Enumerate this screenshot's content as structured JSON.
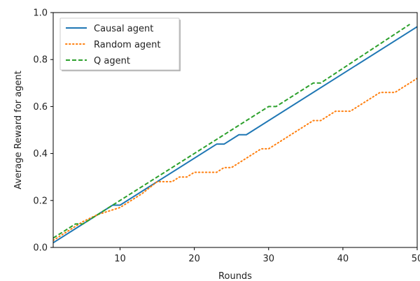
{
  "chart_data": {
    "type": "line",
    "title": "",
    "xlabel": "Rounds",
    "ylabel": "Average Reward for agent",
    "xlim": [
      1,
      50
    ],
    "ylim": [
      0.0,
      1.0
    ],
    "xticks": [
      10,
      20,
      30,
      40,
      50
    ],
    "xtick_labels": [
      "10",
      "20",
      "30",
      "40",
      "50"
    ],
    "yticks": [
      0.0,
      0.2,
      0.4,
      0.6,
      0.8,
      1.0
    ],
    "ytick_labels": [
      "0.0",
      "0.2",
      "0.4",
      "0.6",
      "0.8",
      "1.0"
    ],
    "grid": false,
    "legend_position": "top-left",
    "series": [
      {
        "name": "Causal agent",
        "color": "#1f77b4",
        "style": "solid",
        "x": [
          1,
          5,
          9,
          10,
          23,
          24,
          26,
          27,
          50
        ],
        "y": [
          0.02,
          0.1,
          0.18,
          0.18,
          0.44,
          0.44,
          0.48,
          0.48,
          0.94
        ]
      },
      {
        "name": "Random agent",
        "color": "#ff7f0e",
        "style": "dotted",
        "x": [
          1,
          3,
          5,
          7,
          9,
          10,
          13,
          15,
          16,
          17,
          18,
          19,
          20,
          21,
          22,
          23,
          24,
          25,
          26,
          27,
          28,
          29,
          30,
          31,
          33,
          35,
          36,
          37,
          38,
          39,
          40,
          41,
          42,
          43,
          44,
          45,
          46,
          47,
          48,
          49,
          50
        ],
        "y": [
          0.03,
          0.07,
          0.11,
          0.14,
          0.16,
          0.17,
          0.23,
          0.28,
          0.28,
          0.28,
          0.3,
          0.3,
          0.32,
          0.32,
          0.32,
          0.32,
          0.34,
          0.34,
          0.36,
          0.38,
          0.4,
          0.42,
          0.42,
          0.44,
          0.48,
          0.52,
          0.54,
          0.54,
          0.56,
          0.58,
          0.58,
          0.58,
          0.6,
          0.62,
          0.64,
          0.66,
          0.66,
          0.66,
          0.68,
          0.7,
          0.72
        ]
      },
      {
        "name": "Q agent",
        "color": "#2ca02c",
        "style": "dashed",
        "x": [
          1,
          4,
          5,
          30,
          31,
          36,
          37,
          49
        ],
        "y": [
          0.04,
          0.1,
          0.1,
          0.6,
          0.6,
          0.7,
          0.7,
          0.95
        ]
      }
    ]
  }
}
